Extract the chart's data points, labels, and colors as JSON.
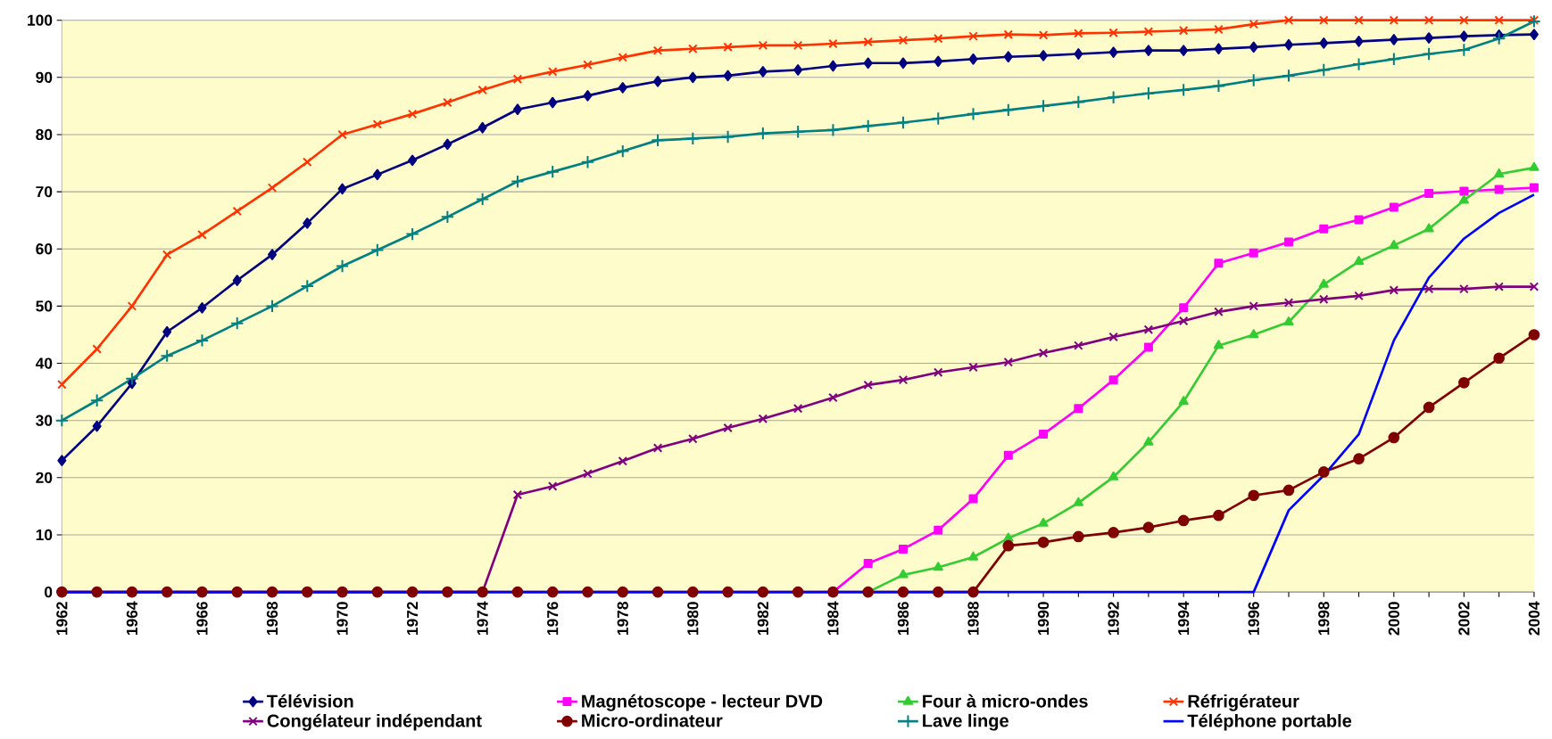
{
  "chart_data": {
    "type": "line",
    "x": [
      1962,
      1963,
      1964,
      1965,
      1966,
      1967,
      1968,
      1969,
      1970,
      1971,
      1972,
      1973,
      1974,
      1975,
      1976,
      1977,
      1978,
      1979,
      1980,
      1981,
      1982,
      1983,
      1984,
      1985,
      1986,
      1987,
      1988,
      1989,
      1990,
      1991,
      1992,
      1993,
      1994,
      1995,
      1996,
      1997,
      1998,
      1999,
      2000,
      2001,
      2002,
      2003,
      2004
    ],
    "xlim": [
      1962,
      2004
    ],
    "xticks": [
      1962,
      {
        "value": 1963,
        "label": null
      },
      1964,
      {
        "value": 1965,
        "label": null
      },
      1966,
      {
        "value": 1967,
        "label": null
      },
      1968,
      {
        "value": 1969,
        "label": null
      },
      1970,
      {
        "value": 1971,
        "label": null
      },
      1972,
      {
        "value": 1973,
        "label": null
      },
      1974,
      {
        "value": 1975,
        "label": null
      },
      1976,
      {
        "value": 1977,
        "label": null
      },
      1978,
      {
        "value": 1979,
        "label": null
      },
      1980,
      {
        "value": 1981,
        "label": null
      },
      1982,
      {
        "value": 1983,
        "label": null
      },
      1984,
      {
        "value": 1985,
        "label": null
      },
      1986,
      {
        "value": 1987,
        "label": null
      },
      1988,
      {
        "value": 1989,
        "label": null
      },
      1990,
      {
        "value": 1991,
        "label": null
      },
      1992,
      {
        "value": 1993,
        "label": null
      },
      1994,
      {
        "value": 1995,
        "label": null
      },
      1996,
      {
        "value": 1997,
        "label": null
      },
      1998,
      {
        "value": 1999,
        "label": null
      },
      2000,
      {
        "value": 2001,
        "label": null
      },
      2002,
      {
        "value": 2003,
        "label": null
      },
      2004
    ],
    "ylim": [
      0,
      100
    ],
    "yticks": [
      0,
      10,
      20,
      30,
      40,
      50,
      60,
      70,
      80,
      90,
      100
    ],
    "grid": "y",
    "legend": "bottom",
    "series": [
      {
        "name": "Télévision",
        "color": "#000080",
        "marker": "diamond",
        "values": [
          23,
          29,
          36.5,
          45.5,
          49.7,
          54.5,
          59,
          64.5,
          70.5,
          73,
          75.5,
          78.3,
          81.2,
          84.4,
          85.6,
          86.8,
          88.2,
          89.3,
          90,
          90.3,
          91,
          91.3,
          92,
          92.5,
          92.5,
          92.8,
          93.2,
          93.6,
          93.8,
          94.1,
          94.4,
          94.7,
          94.7,
          95,
          95.3,
          95.7,
          96,
          96.3,
          96.6,
          96.9,
          97.2,
          97.4,
          97.5
        ]
      },
      {
        "name": "Magnétoscope - lecteur DVD",
        "color": "#ff00ff",
        "marker": "square",
        "values": [
          null,
          null,
          null,
          null,
          null,
          null,
          null,
          null,
          null,
          null,
          null,
          null,
          null,
          null,
          null,
          null,
          null,
          null,
          null,
          null,
          null,
          null,
          0,
          5,
          7.5,
          10.8,
          16.3,
          23.9,
          27.6,
          32.1,
          37.1,
          42.8,
          49.7,
          57.5,
          59.3,
          61.2,
          63.5,
          65.1,
          67.3,
          69.7,
          70.1,
          70.4,
          70.7
        ]
      },
      {
        "name": "Four à micro-ondes",
        "color": "#33cc33",
        "marker": "triangle",
        "values": [
          null,
          null,
          null,
          null,
          null,
          null,
          null,
          null,
          null,
          null,
          null,
          null,
          null,
          null,
          null,
          null,
          null,
          null,
          null,
          null,
          null,
          null,
          null,
          0,
          3,
          4.3,
          6.1,
          9.4,
          12,
          15.6,
          20.1,
          26.2,
          33.3,
          43.1,
          45,
          47.2,
          53.8,
          57.8,
          60.6,
          63.5,
          68.5,
          73.1,
          74.2
        ]
      },
      {
        "name": "Réfrigérateur",
        "color": "#ff3300",
        "marker": "cross",
        "values": [
          36.3,
          42.5,
          50,
          59,
          62.5,
          66.6,
          70.7,
          75.2,
          80,
          81.8,
          83.6,
          85.6,
          87.8,
          89.7,
          91,
          92.2,
          93.5,
          94.7,
          95,
          95.3,
          95.6,
          95.6,
          95.9,
          96.2,
          96.5,
          96.8,
          97.2,
          97.5,
          97.4,
          97.7,
          97.8,
          98,
          98.2,
          98.4,
          99.3,
          100,
          100,
          100,
          100,
          100,
          100,
          100,
          100
        ]
      },
      {
        "name": "Congélateur indépendant",
        "color": "#800080",
        "marker": "cross",
        "values": [
          0,
          0,
          0,
          0,
          0,
          0,
          0,
          0,
          0,
          0,
          0,
          0,
          0,
          17,
          18.5,
          20.7,
          22.9,
          25.2,
          26.8,
          28.7,
          30.3,
          32.1,
          34,
          36.2,
          37.1,
          38.4,
          39.3,
          40.2,
          41.8,
          43.1,
          44.6,
          45.9,
          47.4,
          49,
          50,
          50.6,
          51.2,
          51.8,
          52.8,
          53,
          53,
          53.4,
          53.4
        ]
      },
      {
        "name": "Micro-ordinateur",
        "color": "#800000",
        "marker": "circle",
        "values": [
          0,
          0,
          0,
          0,
          0,
          0,
          0,
          0,
          0,
          0,
          0,
          0,
          0,
          0,
          0,
          0,
          0,
          0,
          0,
          0,
          0,
          0,
          0,
          0,
          0,
          0,
          0,
          8.1,
          8.7,
          9.7,
          10.4,
          11.3,
          12.5,
          13.4,
          16.9,
          17.8,
          21,
          23.3,
          27,
          32.3,
          36.6,
          40.9,
          45
        ]
      },
      {
        "name": "Lave linge",
        "color": "#008080",
        "marker": "plus",
        "values": [
          30,
          33.5,
          37.3,
          41.3,
          44,
          47,
          50,
          53.5,
          57,
          59.8,
          62.6,
          65.6,
          68.7,
          71.8,
          73.5,
          75.2,
          77.1,
          79,
          79.3,
          79.6,
          80.2,
          80.5,
          80.8,
          81.5,
          82.1,
          82.8,
          83.6,
          84.3,
          85,
          85.7,
          86.5,
          87.2,
          87.8,
          88.5,
          89.5,
          90.3,
          91.3,
          92.3,
          93.2,
          94.1,
          94.8,
          96.8,
          99.8
        ]
      },
      {
        "name": "Téléphone portable",
        "color": "#0000ff",
        "marker": "none",
        "values": [
          0,
          0,
          0,
          0,
          0,
          0,
          0,
          0,
          0,
          0,
          0,
          0,
          0,
          0,
          0,
          0,
          0,
          0,
          0,
          0,
          0,
          0,
          0,
          0,
          0,
          0,
          0,
          0,
          0,
          0,
          0,
          0,
          0,
          0,
          0,
          14.3,
          20.4,
          27.6,
          44,
          55,
          61.8,
          66.3,
          69.5
        ]
      }
    ]
  }
}
